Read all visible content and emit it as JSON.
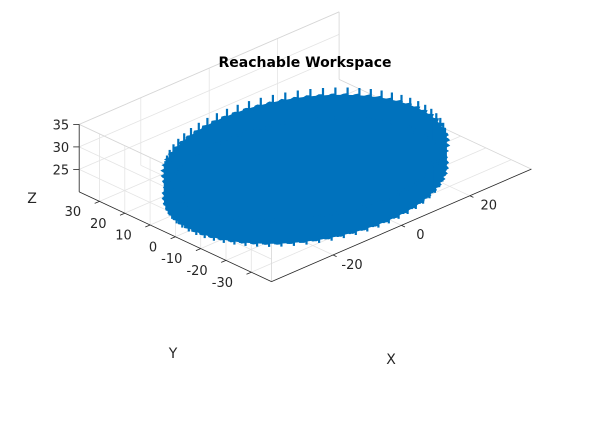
{
  "chart_data": {
    "type": "surface",
    "title": "Reachable Workspace",
    "xlabel": "X",
    "ylabel": "Y",
    "zlabel": "Z",
    "xlim": [
      -38,
      38
    ],
    "ylim": [
      -38,
      38
    ],
    "zlim": [
      20,
      35
    ],
    "xticks": [
      -20,
      0,
      20
    ],
    "yticks": [
      -30,
      -20,
      -10,
      0,
      10,
      20,
      30
    ],
    "zticks": [
      25,
      30,
      35
    ],
    "grid": true,
    "color": "#0072BD",
    "shape": {
      "kind": "cylinder",
      "center": [
        0,
        0
      ],
      "radius": 33,
      "z_range": [
        20,
        25
      ]
    }
  }
}
